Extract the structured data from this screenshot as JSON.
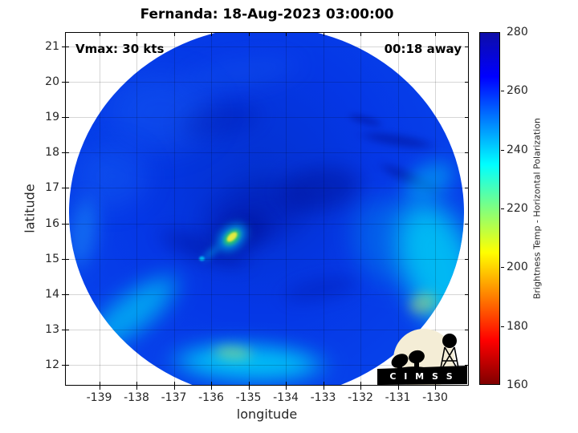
{
  "figure": {
    "title": "Fernanda: 18-Aug-2023 03:00:00"
  },
  "annotations": {
    "vmax": "Vmax: 30 kts",
    "time_offset": "00:18 away"
  },
  "axes": {
    "xlabel": "longitude",
    "ylabel": "latitude",
    "x_tick_labels": [
      "-139",
      "-138",
      "-137",
      "-136",
      "-135",
      "-134",
      "-133",
      "-132",
      "-131",
      "-130"
    ],
    "y_tick_labels": [
      "21",
      "20",
      "19",
      "18",
      "17",
      "16",
      "15",
      "14",
      "13",
      "12"
    ]
  },
  "colorbar": {
    "label": "Brightness Temp - Horizontal Polarization",
    "tick_labels": [
      "280",
      "260",
      "240",
      "220",
      "200",
      "180",
      "160"
    ],
    "stops": [
      {
        "value": 280,
        "color": "#0d0da8"
      },
      {
        "value": 265,
        "color": "#0000ff"
      },
      {
        "value": 235,
        "color": "#00ffff"
      },
      {
        "value": 205,
        "color": "#ffff00"
      },
      {
        "value": 175,
        "color": "#ff0000"
      },
      {
        "value": 160,
        "color": "#800000"
      }
    ]
  },
  "logo": {
    "text": "C I M S S"
  },
  "chart_data": {
    "type": "heatmap",
    "title": "Fernanda: 18-Aug-2023 03:00:00",
    "xlabel": "longitude",
    "ylabel": "latitude",
    "x_ticks": [
      -139,
      -138,
      -137,
      -136,
      -135,
      -134,
      -133,
      -132,
      -131,
      -130
    ],
    "y_ticks": [
      21,
      20,
      19,
      18,
      17,
      16,
      15,
      14,
      13,
      12
    ],
    "xlim": [
      -140,
      -129
    ],
    "ylim": [
      11.4,
      21.4
    ],
    "grid": true,
    "value_label": "Brightness Temp - Horizontal Polarization",
    "value_range": [
      160,
      280
    ],
    "colormap": "jet reversed (280=dark blue, 240=cyan, 205=yellow, 160=dark red)",
    "swath": {
      "shape": "circle",
      "center_lon": -134.5,
      "center_lat": 16.3,
      "radius_deg": 5.3
    },
    "features": [
      {
        "name": "warm hot spot near storm center",
        "lon": -135.5,
        "lat": 15.7,
        "approx_value_K": 208
      },
      {
        "name": "cyan streak / dot southwest of hot spot",
        "lon": -136.2,
        "lat": 15.0,
        "approx_value_K": 240
      },
      {
        "name": "deep blue convective shield (background)",
        "approx_value_K": 263
      },
      {
        "name": "darkest navy band east-northeast of center",
        "lon": -133.0,
        "lat": 16.6,
        "approx_value_K": 275
      },
      {
        "name": "dark streaks far northeast rim",
        "lon": -130.7,
        "lat": 18.6,
        "approx_value_K": 276
      },
      {
        "name": "warm cyan rim southeast quadrant",
        "lon": -130.2,
        "lat": 14.5,
        "approx_value_K": 240
      },
      {
        "name": "warm cyan band along south and southwest rim",
        "lon": -135.0,
        "lat": 12.2,
        "approx_value_K": 242
      },
      {
        "name": "green-tinted patch on south rim",
        "lon": -135.4,
        "lat": 12.4,
        "approx_value_K": 228
      },
      {
        "name": "green-tinted patch on east rim",
        "lon": -130.3,
        "lat": 14.3,
        "approx_value_K": 225
      }
    ],
    "annotations": [
      {
        "text": "Vmax: 30 kts",
        "corner": "top-left"
      },
      {
        "text": "00:18 away",
        "corner": "top-right"
      }
    ],
    "legend_position": "right colorbar",
    "logo": "CIMSS"
  }
}
